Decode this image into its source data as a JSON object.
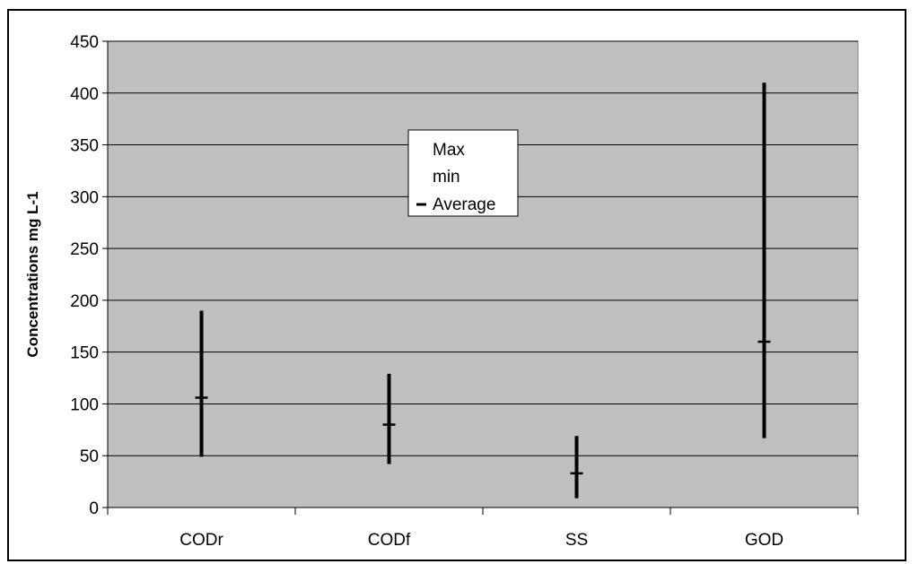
{
  "chart_data": {
    "type": "hi-lo-average",
    "title": "",
    "xlabel": "",
    "ylabel": "Concentrations mg L-1",
    "categories": [
      "CODr",
      "CODf",
      "SS",
      "GOD"
    ],
    "series": [
      {
        "name": "Max",
        "values": [
          190,
          129,
          69,
          410
        ]
      },
      {
        "name": "min",
        "values": [
          49,
          42,
          9,
          67
        ]
      },
      {
        "name": "Average",
        "values": [
          106,
          80,
          33,
          160
        ]
      }
    ],
    "ylim": [
      0,
      450
    ],
    "yticks": [
      0,
      50,
      100,
      150,
      200,
      250,
      300,
      350,
      400,
      450
    ],
    "grid": true,
    "legend_position": "center",
    "colors": {
      "plot_background": "#c0c0c0",
      "gridline": "#000000",
      "series": "#000000"
    }
  }
}
